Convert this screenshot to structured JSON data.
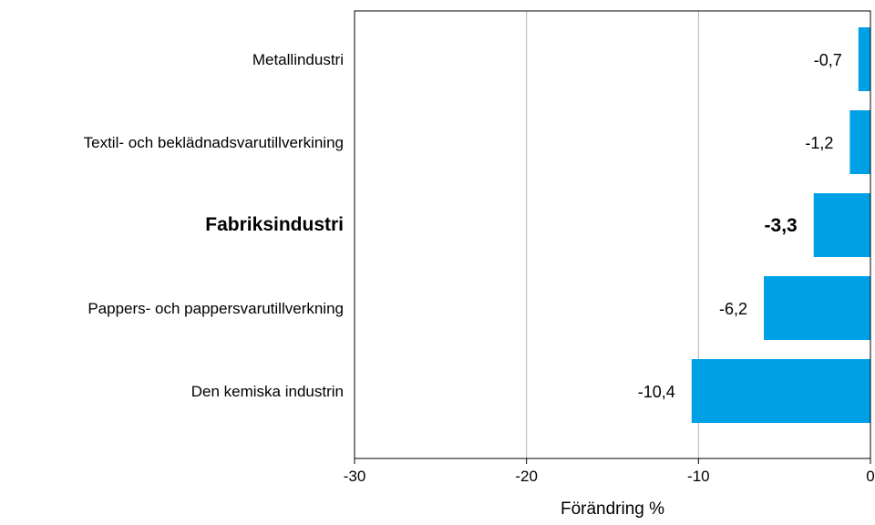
{
  "chart_data": {
    "type": "bar",
    "orientation": "horizontal",
    "categories": [
      "Metallindustri",
      "Textil- och beklädnadsvarutillverkining",
      "Fabriksindustri",
      "Pappers- och pappersvarutillverkning",
      "Den kemiska industrin"
    ],
    "values": [
      -0.7,
      -1.2,
      -3.3,
      -6.2,
      -10.4
    ],
    "value_labels": [
      "-0,7",
      "-1,2",
      "-3,3",
      "-6,2",
      "-10,4"
    ],
    "highlighted_category": "Fabriksindustri",
    "title": "",
    "xlabel": "Förändring %",
    "ylabel": "",
    "xlim": [
      -30,
      0
    ],
    "xticks": [
      -30,
      -20,
      -10,
      0
    ],
    "xtick_labels": [
      "-30",
      "-20",
      "-10",
      "0"
    ],
    "grid": "vertical",
    "legend": "none",
    "colors": {
      "bar": "#00A0E6",
      "grid": "#b4b4b4",
      "axis": "#000000"
    }
  }
}
